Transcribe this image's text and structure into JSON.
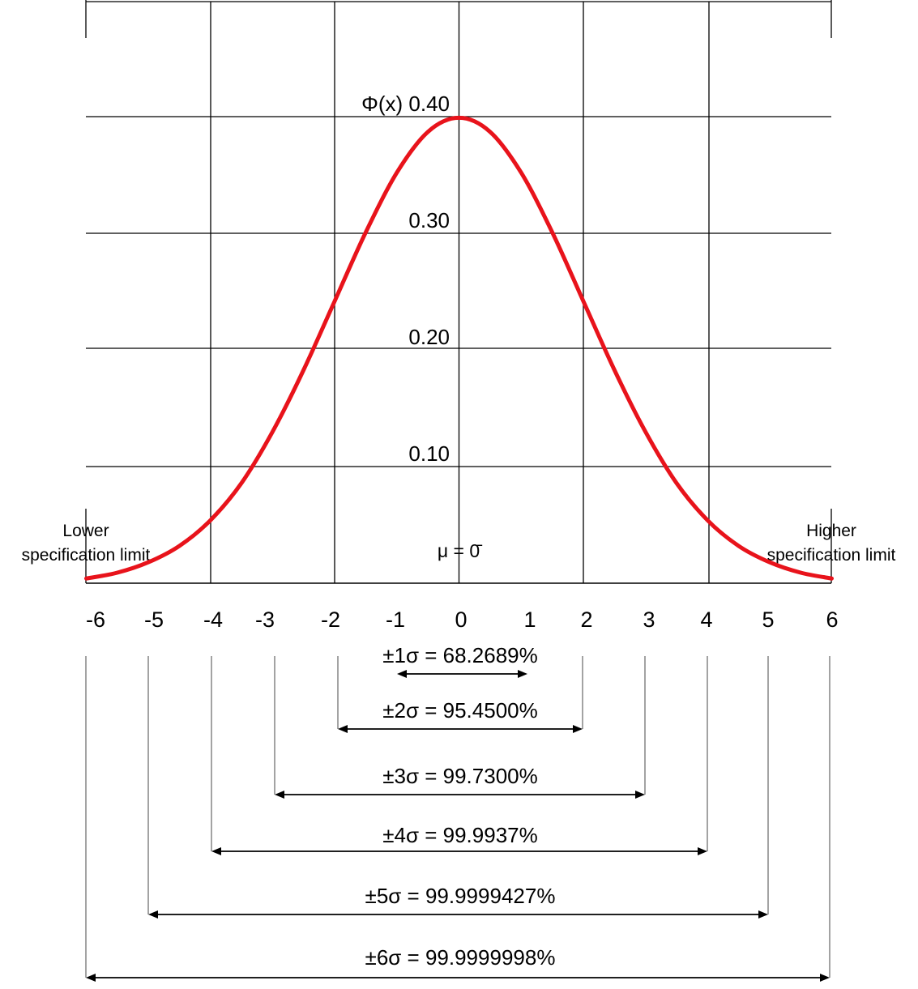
{
  "chart_data": {
    "type": "line",
    "title": "",
    "xlabel": "",
    "ylabel": "Φ(x)",
    "xlim": [
      -6,
      6
    ],
    "ylim": [
      0,
      0.5
    ],
    "grid": true,
    "x_ticks": [
      "-6",
      "-5",
      "-4",
      "-3",
      "-2",
      "-1",
      "0",
      "1",
      "2",
      "3",
      "4",
      "5",
      "6"
    ],
    "y_ticks": [
      {
        "value": 0.4,
        "label": "Φ(x) 0.40"
      },
      {
        "value": 0.3,
        "label": "0.30"
      },
      {
        "value": 0.2,
        "label": "0.20"
      },
      {
        "value": 0.1,
        "label": "0.10"
      }
    ],
    "series": [
      {
        "color": "#e8131b",
        "x": [
          -3,
          -2.75,
          -2.5,
          -2.25,
          -2,
          -1.75,
          -1.5,
          -1.25,
          -1,
          -0.75,
          -0.5,
          -0.25,
          0,
          0.25,
          0.5,
          0.75,
          1,
          1.25,
          1.5,
          1.75,
          2,
          2.25,
          2.5,
          2.75,
          3
        ],
        "y": [
          0.004,
          0.009,
          0.018,
          0.032,
          0.054,
          0.086,
          0.13,
          0.183,
          0.242,
          0.301,
          0.352,
          0.387,
          0.399,
          0.387,
          0.352,
          0.301,
          0.242,
          0.183,
          0.13,
          0.086,
          0.054,
          0.032,
          0.018,
          0.009,
          0.004
        ]
      }
    ],
    "annotations": {
      "mean": "μ = 0̄",
      "lower_limit": [
        "Lower",
        "specification limit"
      ],
      "higher_limit": [
        "Higher",
        "specification limit"
      ]
    },
    "intervals": [
      {
        "sigma": 1,
        "label": "±1σ = 68.2689%",
        "from": -1,
        "to": 1
      },
      {
        "sigma": 2,
        "label": "±2σ = 95.4500%",
        "from": -2,
        "to": 2
      },
      {
        "sigma": 3,
        "label": "±3σ = 99.7300%",
        "from": -3,
        "to": 3
      },
      {
        "sigma": 4,
        "label": "±4σ = 99.9937%",
        "from": -4,
        "to": 4
      },
      {
        "sigma": 5,
        "label": "±5σ = 99.9999427%",
        "from": -5,
        "to": 5
      },
      {
        "sigma": 6,
        "label": "±6σ = 99.9999998%",
        "from": -6,
        "to": 6
      }
    ]
  }
}
